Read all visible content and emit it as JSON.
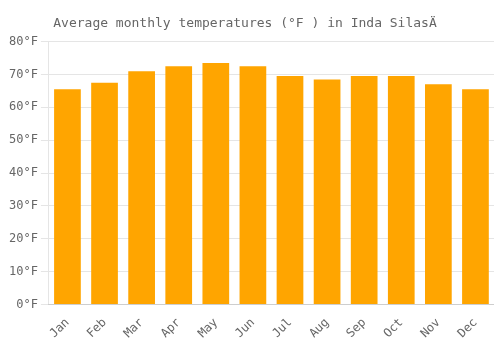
{
  "chart_data": {
    "type": "bar",
    "title": "Average monthly temperatures (°F ) in Inda SilasÄ",
    "categories": [
      "Jan",
      "Feb",
      "Mar",
      "Apr",
      "May",
      "Jun",
      "Jul",
      "Aug",
      "Sep",
      "Oct",
      "Nov",
      "Dec"
    ],
    "values": [
      65.5,
      67.5,
      71.0,
      72.5,
      73.5,
      72.5,
      69.5,
      68.5,
      69.5,
      69.5,
      67.0,
      65.5
    ],
    "color": "#FFA500",
    "ylim": [
      0,
      80
    ],
    "yticks": [
      {
        "value": 0,
        "label": "0°F"
      },
      {
        "value": 10,
        "label": "10°F"
      },
      {
        "value": 20,
        "label": "20°F"
      },
      {
        "value": 30,
        "label": "30°F"
      },
      {
        "value": 40,
        "label": "40°F"
      },
      {
        "value": 50,
        "label": "50°F"
      },
      {
        "value": 60,
        "label": "60°F"
      },
      {
        "value": 70,
        "label": "70°F"
      },
      {
        "value": 80,
        "label": "80°F"
      }
    ],
    "grid": true
  }
}
